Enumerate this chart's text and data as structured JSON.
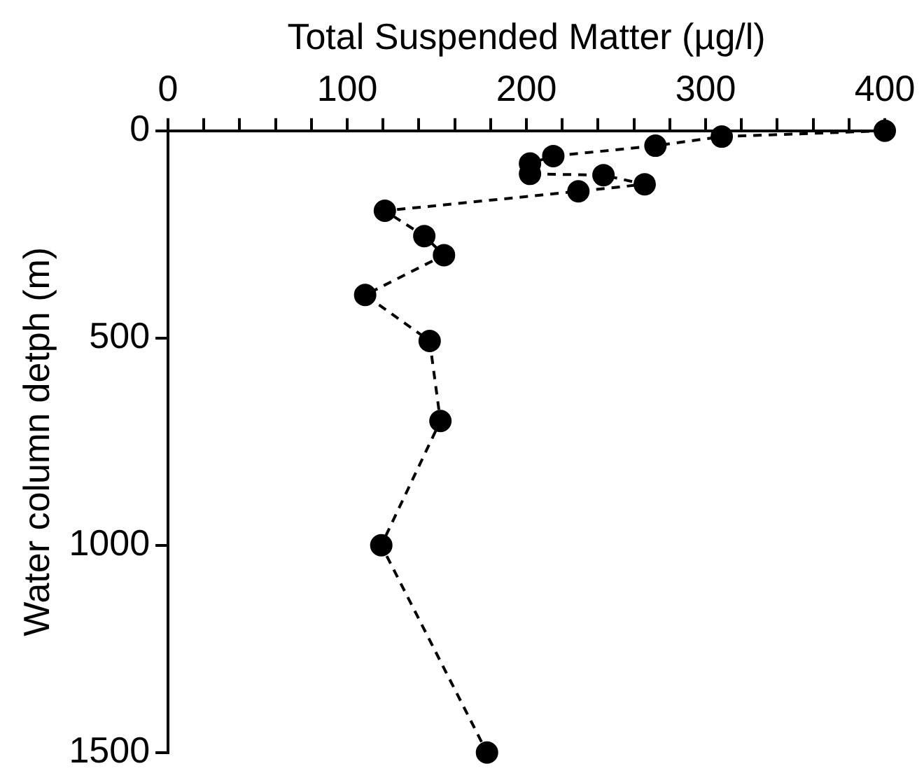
{
  "chart_data": {
    "type": "line",
    "xlabel": "Total Suspended Matter (µg/l)",
    "ylabel": "Water column detph (m)",
    "x": [
      400,
      309,
      272,
      215,
      202,
      202,
      243,
      266,
      229,
      121,
      143,
      154,
      110,
      146,
      152,
      119,
      178
    ],
    "values": [
      0,
      14,
      36,
      61,
      79,
      104,
      107,
      129,
      146,
      193,
      254,
      300,
      396,
      507,
      700,
      1000,
      1500
    ],
    "color": "#000000",
    "marker": "circle",
    "line_style": "dashed",
    "grid": false,
    "xlim": [
      0,
      400
    ],
    "xticks": [
      0,
      {
        "value": 20,
        "label": null
      },
      {
        "value": 40,
        "label": null
      },
      {
        "value": 60,
        "label": null
      },
      {
        "value": 80,
        "label": null
      },
      100,
      {
        "value": 120,
        "label": null
      },
      {
        "value": 140,
        "label": null
      },
      {
        "value": 160,
        "label": null
      },
      {
        "value": 180,
        "label": null
      },
      200,
      {
        "value": 220,
        "label": null
      },
      {
        "value": 240,
        "label": null
      },
      {
        "value": 260,
        "label": null
      },
      {
        "value": 280,
        "label": null
      },
      300,
      {
        "value": 320,
        "label": null
      },
      {
        "value": 340,
        "label": null
      },
      {
        "value": 360,
        "label": null
      },
      {
        "value": 380,
        "label": null
      },
      400
    ],
    "ylim": [
      1500,
      0
    ],
    "yticks": [
      0,
      500,
      1000,
      1500
    ]
  }
}
